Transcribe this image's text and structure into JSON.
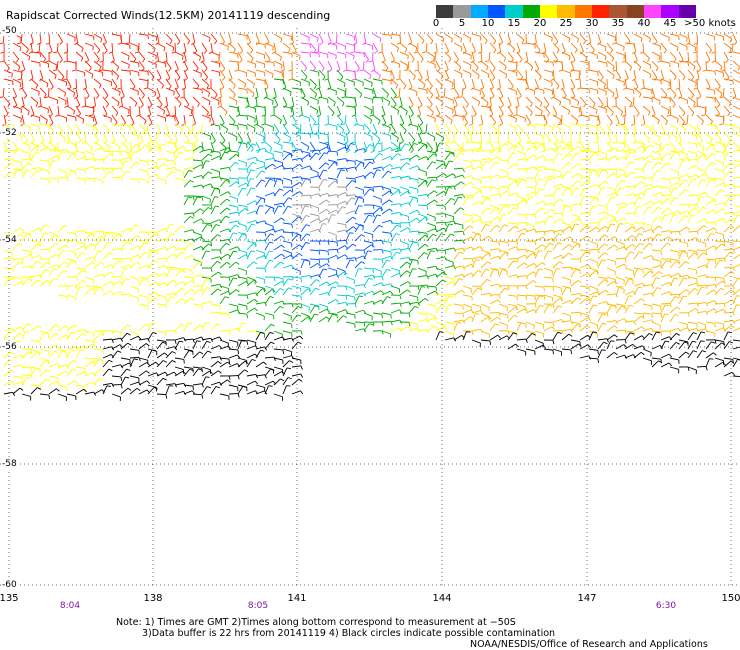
{
  "title": "Rapidscat Corrected Winds(12.5KM) 20141119 descending",
  "colorbar": {
    "colors": [
      "#3c3c3c",
      "#9a9a9a",
      "#00aaff",
      "#0055ff",
      "#00cccc",
      "#00aa00",
      "#ffff00",
      "#ffbb00",
      "#ff7700",
      "#ff2200",
      "#aa5533",
      "#884422",
      "#ff44ff",
      "#aa00ff",
      "#6600aa"
    ],
    "labels": [
      "0",
      "5",
      "10",
      "15",
      "20",
      "25",
      "30",
      "35",
      "40",
      "45",
      ">50 knots"
    ]
  },
  "lat_labels": [
    "-50",
    "-52",
    "-54",
    "-56",
    "-58",
    "-60"
  ],
  "lon_labels": [
    "135",
    "138",
    "141",
    "144",
    "147",
    "150"
  ],
  "time_labels": [
    "8:04",
    "8:05",
    "6:30"
  ],
  "notes": [
    "Note: 1) Times are GMT 2)Times along bottom correspond to measurement at −50S",
    "3)Data buffer is 22 hrs from 20141119 4) Black circles indicate possible contamination"
  ],
  "credit": "NOAA/NESDIS/Office of Research and Applications"
}
